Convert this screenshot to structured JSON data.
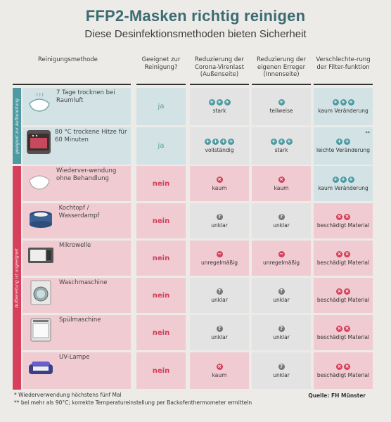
{
  "title": "FFP2-Masken richtig reinigen",
  "subtitle": "Diese Desinfektionsmethoden bieten Sicherheit",
  "columns": {
    "method": "Reinigungsmethode",
    "suitable": "Geeignet zur Reinigung?",
    "outside": "Reduzierung der Corona-Virenlast (Außenseite)",
    "inside": "Reduzierung der eigenen Erreger (Innenseite)",
    "filter": "Verschlechte-rung der Filter-funktion"
  },
  "groups": {
    "green_label": "geeignet zur Aufbereitung",
    "red_label": "Aufbereitung ist ungeeignet"
  },
  "rows": [
    {
      "method": "7 Tage trocknen bei Raumluft",
      "suitable": "ja",
      "outside": "stark",
      "inside": "teilweise",
      "filter": "kaum Veränderung",
      "filter_note": ""
    },
    {
      "method": "80 °C trockene Hitze für 60 Minuten",
      "suitable": "ja",
      "outside": "vollständig",
      "inside": "stark",
      "filter": "leichte Veränderung",
      "filter_note": "**"
    },
    {
      "method": "Wiederver-wendung ohne Behandlung",
      "suitable": "nein",
      "outside": "kaum",
      "inside": "kaum",
      "filter": "kaum Veränderung",
      "filter_note": ""
    },
    {
      "method": "Kochtopf / Wasserdampf",
      "suitable": "nein",
      "outside": "unklar",
      "inside": "unklar",
      "filter": "beschädigt Material",
      "filter_note": ""
    },
    {
      "method": "Mikrowelle",
      "suitable": "nein",
      "outside": "unregelmäßig",
      "inside": "unregelmäßig",
      "filter": "beschädigt Material",
      "filter_note": ""
    },
    {
      "method": "Waschmaschine",
      "suitable": "nein",
      "outside": "unklar",
      "inside": "unklar",
      "filter": "beschädigt Material",
      "filter_note": ""
    },
    {
      "method": "Spülmaschine",
      "suitable": "nein",
      "outside": "unklar",
      "inside": "unklar",
      "filter": "beschädigt Material",
      "filter_note": ""
    },
    {
      "method": "UV-Lampe",
      "suitable": "nein",
      "outside": "kaum",
      "inside": "unklar",
      "filter": "beschädigt Material",
      "filter_note": ""
    }
  ],
  "footnotes": {
    "one": "* Wiederverwendung höchstens fünf Mal",
    "two": "** bei mehr als 90°C; korrekte Temperatureinstellung per Backofenthermometer ermitteln"
  },
  "source": "Quelle: FH Münster",
  "colors": {
    "teal": "#4e9aa2",
    "red": "#d6405a",
    "title": "#3d6b72"
  }
}
